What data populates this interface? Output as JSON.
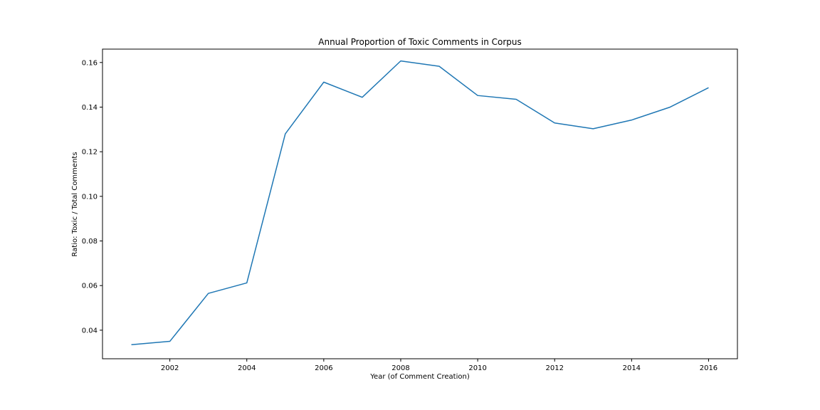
{
  "chart_data": {
    "type": "line",
    "title": "Annual Proportion of Toxic Comments in Corpus",
    "xlabel": "Year (of Comment Creation)",
    "ylabel": "Ratio: Toxic / Total Comments",
    "xlim": [
      2000.25,
      2016.75
    ],
    "ylim": [
      0.0272,
      0.166
    ],
    "xticks": [
      2002,
      2004,
      2006,
      2008,
      2010,
      2012,
      2014,
      2016
    ],
    "xtick_labels": [
      "2002",
      "2004",
      "2006",
      "2008",
      "2010",
      "2012",
      "2014",
      "2016"
    ],
    "yticks": [
      0.04,
      0.06,
      0.08,
      0.1,
      0.12,
      0.14,
      0.16
    ],
    "ytick_labels": [
      "0.04",
      "0.06",
      "0.08",
      "0.10",
      "0.12",
      "0.14",
      "0.16"
    ],
    "grid": false,
    "series": [
      {
        "color": "#1f77b4",
        "x": [
          2001,
          2002,
          2003,
          2004,
          2005,
          2006,
          2007,
          2008,
          2009,
          2010,
          2011,
          2012,
          2013,
          2014,
          2015,
          2016
        ],
        "y": [
          0.0335,
          0.035,
          0.0565,
          0.0612,
          0.128,
          0.1512,
          0.1444,
          0.1607,
          0.1583,
          0.1452,
          0.1435,
          0.1329,
          0.1303,
          0.1342,
          0.14,
          0.1487
        ]
      }
    ]
  }
}
